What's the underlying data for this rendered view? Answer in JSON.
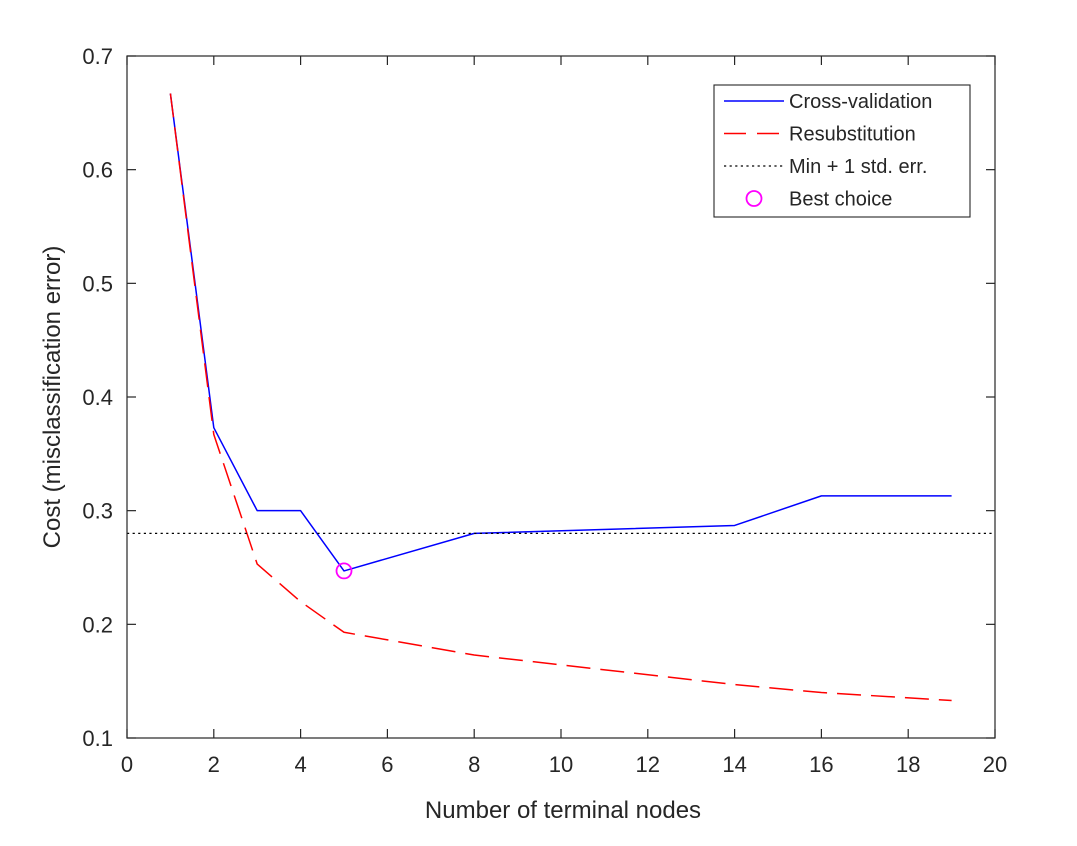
{
  "chart_data": {
    "type": "line",
    "title": "",
    "xlabel": "Number of terminal nodes",
    "ylabel": "Cost (misclassification error)",
    "xlim": [
      0,
      20
    ],
    "ylim": [
      0.1,
      0.7
    ],
    "xticks": [
      0,
      2,
      4,
      6,
      8,
      10,
      12,
      14,
      16,
      18,
      20
    ],
    "yticks": [
      0.1,
      0.2,
      0.3,
      0.4,
      0.5,
      0.6,
      0.7
    ],
    "xtick_labels": [
      "0",
      "2",
      "4",
      "6",
      "8",
      "10",
      "12",
      "14",
      "16",
      "18",
      "20"
    ],
    "ytick_labels": [
      "0.1",
      "0.2",
      "0.3",
      "0.4",
      "0.5",
      "0.6",
      "0.7"
    ],
    "grid": false,
    "legend_position": "top-right",
    "series": [
      {
        "name": "Cross-validation",
        "style": "solid",
        "color": "#0000ff",
        "x": [
          1,
          2,
          3,
          4,
          5,
          8,
          14,
          16,
          19
        ],
        "y": [
          0.667,
          0.373,
          0.3,
          0.3,
          0.247,
          0.28,
          0.287,
          0.313,
          0.313
        ]
      },
      {
        "name": "Resubstitution",
        "style": "dashed",
        "color": "#ff0000",
        "x": [
          1,
          2,
          3,
          4,
          5,
          8,
          14,
          16,
          19
        ],
        "y": [
          0.667,
          0.367,
          0.253,
          0.22,
          0.193,
          0.173,
          0.147,
          0.14,
          0.133
        ]
      },
      {
        "name": "Min + 1 std. err.",
        "style": "dotted",
        "color": "#000000",
        "x": [
          0,
          20
        ],
        "y": [
          0.28,
          0.28
        ]
      },
      {
        "name": "Best choice",
        "style": "marker",
        "marker": "circle",
        "color": "#ff00ff",
        "x": [
          5
        ],
        "y": [
          0.247
        ]
      }
    ]
  }
}
